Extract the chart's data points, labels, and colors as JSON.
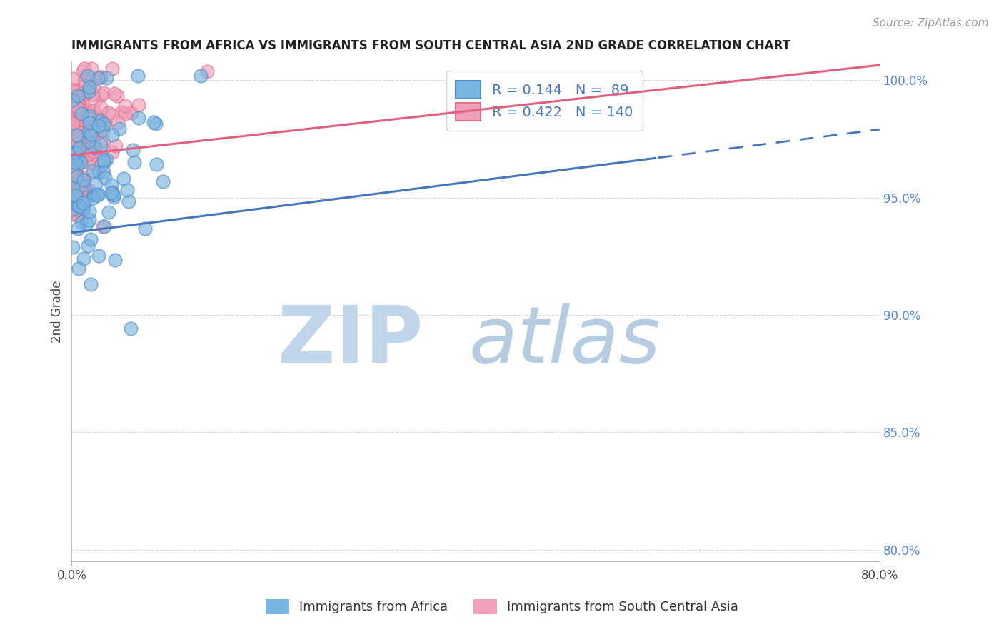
{
  "title": "IMMIGRANTS FROM AFRICA VS IMMIGRANTS FROM SOUTH CENTRAL ASIA 2ND GRADE CORRELATION CHART",
  "source_text": "Source: ZipAtlas.com",
  "ylabel": "2nd Grade",
  "xlim": [
    0.0,
    0.8
  ],
  "ylim": [
    0.795,
    1.008
  ],
  "xtick_positions": [
    0.0,
    0.8
  ],
  "xtick_labels": [
    "0.0%",
    "80.0%"
  ],
  "ytick_values": [
    1.0,
    0.95,
    0.9,
    0.85,
    0.8
  ],
  "ytick_labels": [
    "100.0%",
    "95.0%",
    "90.0%",
    "85.0%",
    "80.0%"
  ],
  "grid_color": "#cccccc",
  "background_color": "#ffffff",
  "africa_color": "#7ab4e0",
  "africa_edge_color": "#5090c8",
  "sca_color": "#f0a0b8",
  "sca_edge_color": "#e07090",
  "africa_R": 0.144,
  "africa_N": 89,
  "sca_R": 0.422,
  "sca_N": 140,
  "legend_africa": "Immigrants from Africa",
  "legend_sca": "Immigrants from South Central Asia",
  "africa_line_color": "#4477bb",
  "sca_line_color": "#e06080",
  "watermark_zip_color": "#c0d5ea",
  "watermark_atlas_color": "#a8c4dc",
  "title_fontsize": 12,
  "tick_fontsize": 12,
  "legend_fontsize": 14,
  "source_fontsize": 11
}
